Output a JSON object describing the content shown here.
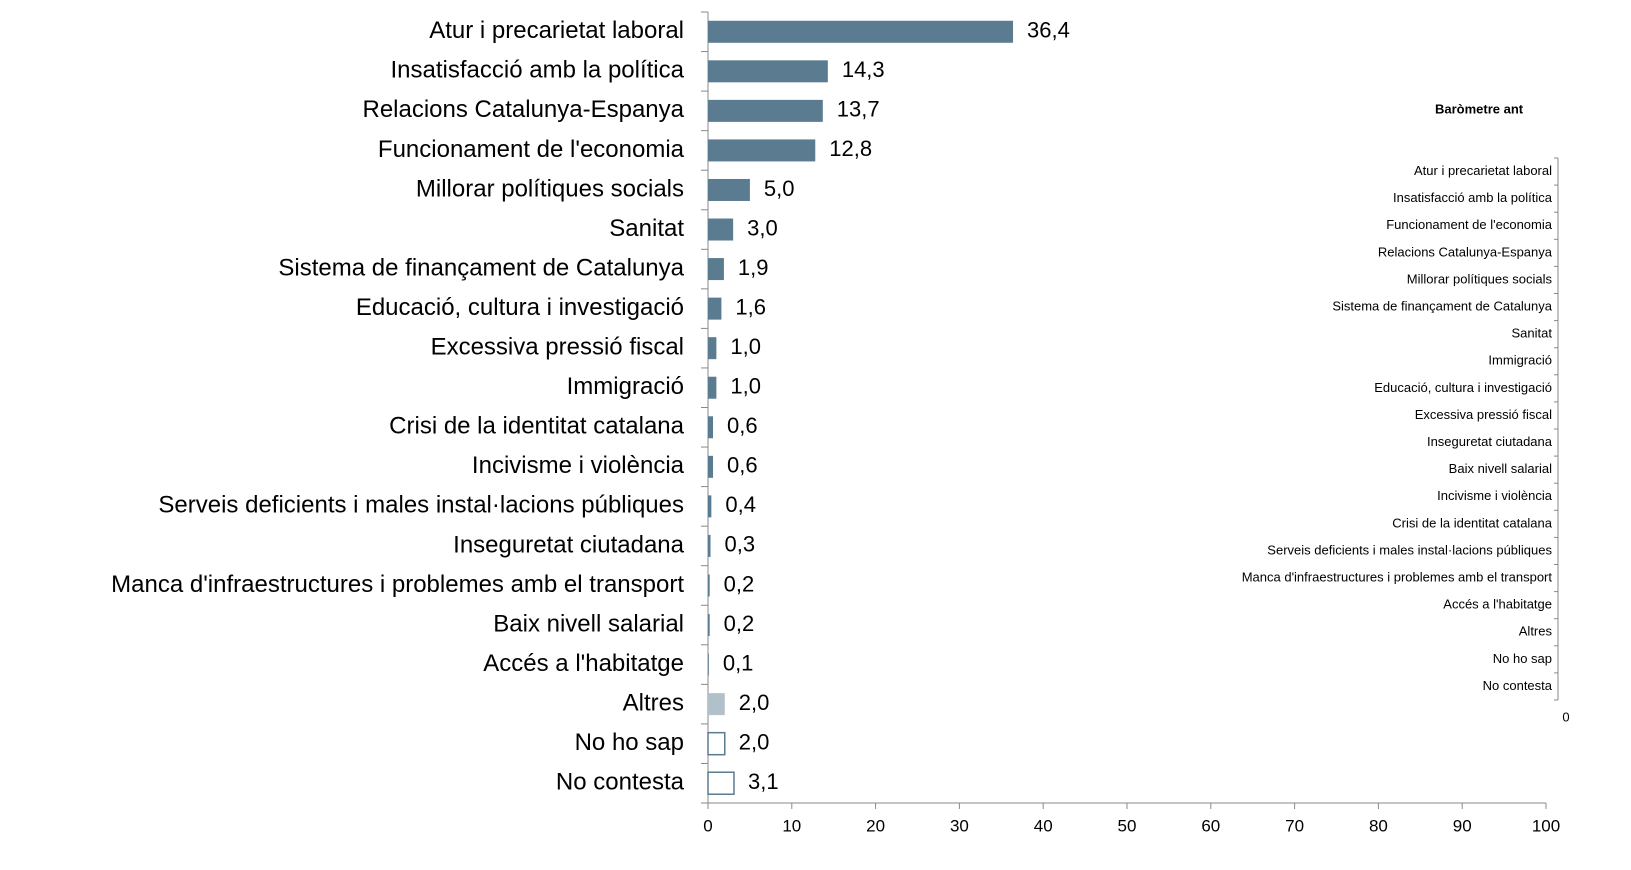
{
  "chart_data": [
    {
      "type": "bar",
      "orientation": "horizontal",
      "categories": [
        "Atur i precarietat laboral",
        "Insatisfacció amb la política",
        "Relacions Catalunya-Espanya",
        "Funcionament de l'economia",
        "Millorar polítiques socials",
        "Sanitat",
        "Sistema de finançament de Catalunya",
        "Educació, cultura i investigació",
        "Excessiva pressió fiscal",
        "Immigració",
        "Crisi de la identitat catalana",
        "Incivisme i violència",
        "Serveis deficients i males instal·lacions públiques",
        "Inseguretat ciutadana",
        "Manca d'infraestructures i problemes amb el transport",
        "Baix nivell salarial",
        "Accés a l'habitatge",
        "Altres",
        "No ho sap",
        "No contesta"
      ],
      "values": [
        36.4,
        14.3,
        13.7,
        12.8,
        5.0,
        3.0,
        1.9,
        1.6,
        1.0,
        1.0,
        0.6,
        0.6,
        0.4,
        0.3,
        0.2,
        0.2,
        0.1,
        2.0,
        2.0,
        3.1
      ],
      "value_labels": [
        "36,4",
        "14,3",
        "13,7",
        "12,8",
        "5,0",
        "3,0",
        "1,9",
        "1,6",
        "1,0",
        "1,0",
        "0,6",
        "0,6",
        "0,4",
        "0,3",
        "0,2",
        "0,2",
        "0,1",
        "2,0",
        "2,0",
        "3,1"
      ],
      "colors": [
        "#5b7b90",
        "#5b7b90",
        "#5b7b90",
        "#5b7b90",
        "#5b7b90",
        "#5b7b90",
        "#5b7b90",
        "#5b7b90",
        "#5b7b90",
        "#5b7b90",
        "#5b7b90",
        "#5b7b90",
        "#5b7b90",
        "#5b7b90",
        "#5b7b90",
        "#5b7b90",
        "#5b7b90",
        "#b2c0ca",
        "#ffffff",
        "#ffffff"
      ],
      "edgecolor": "#5b7b90",
      "xlim": [
        0,
        100
      ],
      "xticks": [
        0,
        10,
        20,
        30,
        40,
        50,
        60,
        70,
        80,
        90,
        100
      ]
    },
    {
      "type": "bar",
      "orientation": "horizontal",
      "title": "Baròmetre ant",
      "categories": [
        "Atur i precarietat laboral",
        "Insatisfacció amb la política",
        "Funcionament de l'economia",
        "Relacions Catalunya-Espanya",
        "Millorar polítiques socials",
        "Sistema de finançament de Catalunya",
        "Sanitat",
        "Immigració",
        "Educació, cultura i investigació",
        "Excessiva pressió fiscal",
        "Inseguretat ciutadana",
        "Baix nivell salarial",
        "Incivisme i violència",
        "Crisi de la identitat catalana",
        "Serveis deficients i males instal·lacions públiques",
        "Manca d'infraestructures i problemes amb el transport",
        "Accés a l'habitatge",
        "Altres",
        "No ho sap",
        "No contesta"
      ],
      "xticks": [
        0
      ]
    }
  ]
}
